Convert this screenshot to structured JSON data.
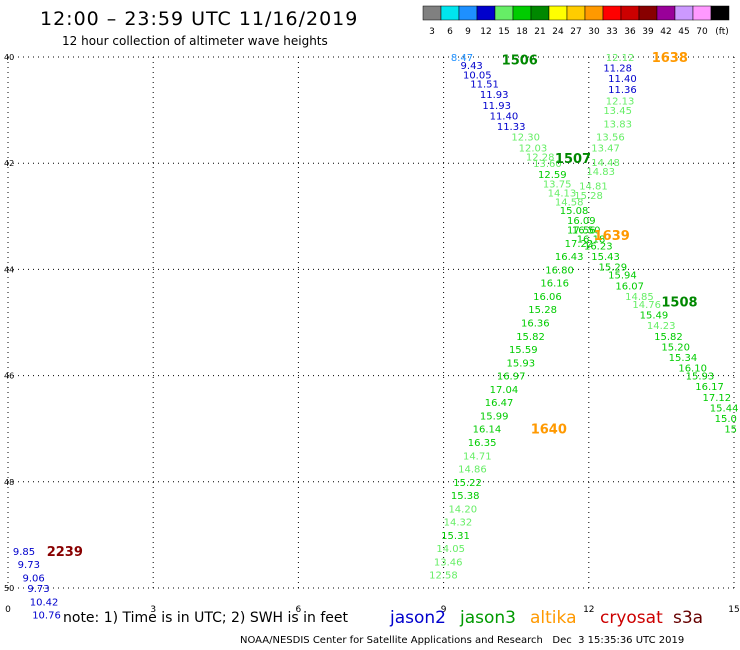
{
  "title": "12:00 – 23:59 UTC 11/16/2019",
  "subtitle": "12 hour collection of altimeter wave heights",
  "footer_note": "note: 1) Time is in UTC; 2) SWH is in feet",
  "credit": "NOAA/NESDIS Center for Satellite Applications and Research   Dec  3 15:35:36 UTC 2019",
  "satellites": [
    {
      "name": "jason2",
      "color": "#0000cc"
    },
    {
      "name": "jason3",
      "color": "#009900"
    },
    {
      "name": "altika",
      "color": "#ff9900"
    },
    {
      "name": "cryosat",
      "color": "#cc0000"
    },
    {
      "name": "s3a",
      "color": "#660000"
    }
  ],
  "color_scale": {
    "labels": [
      "3",
      "6",
      "9",
      "12",
      "15",
      "18",
      "21",
      "24",
      "27",
      "30",
      "33",
      "36",
      "39",
      "42",
      "45",
      "70",
      "(ft)"
    ],
    "colors": [
      "#808080",
      "#00e5ee",
      "#1e90ff",
      "#0000cc",
      "#66ee66",
      "#00cc00",
      "#008800",
      "#ffff00",
      "#ffcc00",
      "#ff9900",
      "#ff0000",
      "#cc0000",
      "#880000",
      "#990099",
      "#cc99ff",
      "#ff99ff",
      "#000000"
    ]
  },
  "chart_data": {
    "type": "scatter",
    "title": "12:00 – 23:59 UTC 11/16/2019",
    "xlabel": "",
    "ylabel": "",
    "x_ticks": [
      "0",
      "3",
      "6",
      "9",
      "12",
      "15"
    ],
    "y_ticks": [
      "40",
      "42",
      "44",
      "46",
      "48",
      "50"
    ],
    "xlim": [
      0,
      15
    ],
    "ylim": [
      40,
      50
    ],
    "grid": true,
    "pass_labels": [
      {
        "text": "1506",
        "x": 10.2,
        "y": 40.05,
        "color": "#008800"
      },
      {
        "text": "1638",
        "x": 13.3,
        "y": 40.0,
        "color": "#ff9900"
      },
      {
        "text": "1507",
        "x": 11.3,
        "y": 41.9,
        "color": "#008800"
      },
      {
        "text": "1639",
        "x": 12.1,
        "y": 43.35,
        "color": "#ff9900"
      },
      {
        "text": "1508",
        "x": 13.5,
        "y": 44.6,
        "color": "#008800"
      },
      {
        "text": "1640",
        "x": 10.8,
        "y": 47.0,
        "color": "#ff9900"
      },
      {
        "text": "2239",
        "x": 0.8,
        "y": 49.3,
        "color": "#880000"
      }
    ],
    "series": [
      {
        "name": "1506",
        "color": "#0000cc",
        "points": [
          {
            "x": 9.15,
            "y": 40.0,
            "v": "8.47",
            "c": "#1e90ff"
          },
          {
            "x": 9.35,
            "y": 40.15,
            "v": "9.43"
          },
          {
            "x": 9.4,
            "y": 40.33,
            "v": "10.05"
          },
          {
            "x": 9.55,
            "y": 40.5,
            "v": "11.51"
          },
          {
            "x": 9.75,
            "y": 40.7,
            "v": "11.93"
          },
          {
            "x": 9.8,
            "y": 40.9,
            "v": "11.93"
          },
          {
            "x": 9.95,
            "y": 41.1,
            "v": "11.40"
          },
          {
            "x": 10.1,
            "y": 41.3,
            "v": "11.33"
          }
        ]
      },
      {
        "name": "1507",
        "color": "#66ee66",
        "points": [
          {
            "x": 10.4,
            "y": 41.5,
            "v": "12.30"
          },
          {
            "x": 10.55,
            "y": 41.7,
            "v": "12.03"
          },
          {
            "x": 10.7,
            "y": 41.87,
            "v": "12.28"
          },
          {
            "x": 10.85,
            "y": 42.0,
            "v": "13.60"
          },
          {
            "x": 10.95,
            "y": 42.2,
            "v": "12.59",
            "c": "#00cc00"
          },
          {
            "x": 11.05,
            "y": 42.38,
            "v": "13.75"
          },
          {
            "x": 11.15,
            "y": 42.55,
            "v": "14.13"
          },
          {
            "x": 11.3,
            "y": 42.72,
            "v": "14.58"
          },
          {
            "x": 11.4,
            "y": 42.88,
            "v": "15.08",
            "c": "#00cc00"
          },
          {
            "x": 11.55,
            "y": 43.07,
            "v": "16.09",
            "c": "#00cc00"
          },
          {
            "x": 11.65,
            "y": 43.25,
            "v": "16.50",
            "c": "#00cc00"
          },
          {
            "x": 11.75,
            "y": 43.42,
            "v": "16.18",
            "c": "#00cc00"
          },
          {
            "x": 11.9,
            "y": 43.55,
            "v": "16.23",
            "c": "#00cc00"
          },
          {
            "x": 12.05,
            "y": 43.75,
            "v": "15.43",
            "c": "#00cc00"
          },
          {
            "x": 12.2,
            "y": 43.95,
            "v": "15.29",
            "c": "#00cc00"
          },
          {
            "x": 12.4,
            "y": 44.1,
            "v": "15.94",
            "c": "#00cc00"
          },
          {
            "x": 12.55,
            "y": 44.3,
            "v": "16.07",
            "c": "#00cc00"
          },
          {
            "x": 12.75,
            "y": 44.5,
            "v": "14.85"
          },
          {
            "x": 12.9,
            "y": 44.65,
            "v": "14.76"
          },
          {
            "x": 13.05,
            "y": 44.85,
            "v": "15.49",
            "c": "#00cc00"
          },
          {
            "x": 13.2,
            "y": 45.05,
            "v": "14.23"
          },
          {
            "x": 13.35,
            "y": 45.25,
            "v": "15.82",
            "c": "#00cc00"
          },
          {
            "x": 13.5,
            "y": 45.45,
            "v": "15.20",
            "c": "#00cc00"
          },
          {
            "x": 13.65,
            "y": 45.65,
            "v": "15.34",
            "c": "#00cc00"
          },
          {
            "x": 13.85,
            "y": 45.85,
            "v": "16.10",
            "c": "#00cc00"
          },
          {
            "x": 14.0,
            "y": 46.0,
            "v": "15.93",
            "c": "#00cc00"
          },
          {
            "x": 14.2,
            "y": 46.2,
            "v": "16.17",
            "c": "#00cc00"
          },
          {
            "x": 14.35,
            "y": 46.4,
            "v": "17.12",
            "c": "#00cc00"
          },
          {
            "x": 14.5,
            "y": 46.6,
            "v": "15.44",
            "c": "#00cc00"
          },
          {
            "x": 14.6,
            "y": 46.8,
            "v": "15.0",
            "c": "#00cc00"
          },
          {
            "x": 14.8,
            "y": 47.0,
            "v": "15",
            "c": "#00cc00"
          }
        ]
      },
      {
        "name": "1638",
        "color": "#66ee66",
        "points": [
          {
            "x": 12.35,
            "y": 40.0,
            "v": "12.12"
          },
          {
            "x": 12.3,
            "y": 40.2,
            "v": "11.28",
            "c": "#0000cc"
          },
          {
            "x": 12.4,
            "y": 40.4,
            "v": "11.40",
            "c": "#0000cc"
          },
          {
            "x": 12.4,
            "y": 40.6,
            "v": "11.36",
            "c": "#0000cc"
          },
          {
            "x": 12.35,
            "y": 40.82,
            "v": "12.13"
          },
          {
            "x": 12.3,
            "y": 41.0,
            "v": "13.45"
          },
          {
            "x": 12.3,
            "y": 41.25,
            "v": "13.83"
          },
          {
            "x": 12.15,
            "y": 41.5,
            "v": "13.56"
          },
          {
            "x": 12.05,
            "y": 41.7,
            "v": "13.47"
          },
          {
            "x": 12.05,
            "y": 41.98,
            "v": "14.48"
          },
          {
            "x": 11.95,
            "y": 42.15,
            "v": "14.83"
          },
          {
            "x": 11.8,
            "y": 42.42,
            "v": "14.81"
          },
          {
            "x": 11.7,
            "y": 42.6,
            "v": "15.28"
          }
        ]
      },
      {
        "name": "1639",
        "color": "#00cc00",
        "points": [
          {
            "x": 11.55,
            "y": 43.25,
            "v": "17.56"
          },
          {
            "x": 11.5,
            "y": 43.5,
            "v": "17.22"
          },
          {
            "x": 11.3,
            "y": 43.75,
            "v": "16.43"
          },
          {
            "x": 11.1,
            "y": 44.0,
            "v": "16.80"
          },
          {
            "x": 11.0,
            "y": 44.25,
            "v": "16.16"
          },
          {
            "x": 10.85,
            "y": 44.5,
            "v": "16.06"
          },
          {
            "x": 10.75,
            "y": 44.75,
            "v": "15.28"
          },
          {
            "x": 10.6,
            "y": 45.0,
            "v": "16.36"
          },
          {
            "x": 10.5,
            "y": 45.25,
            "v": "15.82"
          },
          {
            "x": 10.35,
            "y": 45.5,
            "v": "15.59"
          },
          {
            "x": 10.3,
            "y": 45.75,
            "v": "15.93"
          },
          {
            "x": 10.1,
            "y": 46.0,
            "v": "16.97"
          },
          {
            "x": 9.95,
            "y": 46.25,
            "v": "17.04"
          },
          {
            "x": 9.85,
            "y": 46.5,
            "v": "16.47"
          },
          {
            "x": 9.75,
            "y": 46.75,
            "v": "15.99"
          }
        ]
      },
      {
        "name": "1640",
        "color": "#00cc00",
        "points": [
          {
            "x": 9.6,
            "y": 47.0,
            "v": "16.14"
          },
          {
            "x": 9.5,
            "y": 47.25,
            "v": "16.35"
          },
          {
            "x": 9.4,
            "y": 47.5,
            "v": "14.71",
            "c": "#66ee66"
          },
          {
            "x": 9.3,
            "y": 47.75,
            "v": "14.86",
            "c": "#66ee66"
          },
          {
            "x": 9.2,
            "y": 48.0,
            "v": "15.22"
          },
          {
            "x": 9.15,
            "y": 48.25,
            "v": "15.38"
          },
          {
            "x": 9.1,
            "y": 48.5,
            "v": "14.20",
            "c": "#66ee66"
          },
          {
            "x": 9.0,
            "y": 48.75,
            "v": "14.32",
            "c": "#66ee66"
          },
          {
            "x": 8.95,
            "y": 49.0,
            "v": "15.31"
          },
          {
            "x": 8.85,
            "y": 49.25,
            "v": "14.05",
            "c": "#66ee66"
          },
          {
            "x": 8.8,
            "y": 49.5,
            "v": "13.46",
            "c": "#66ee66"
          },
          {
            "x": 8.7,
            "y": 49.75,
            "v": "12.58",
            "c": "#66ee66"
          }
        ]
      },
      {
        "name": "2239",
        "color": "#0000cc",
        "points": [
          {
            "x": 0.1,
            "y": 49.3,
            "v": "9.85"
          },
          {
            "x": 0.2,
            "y": 49.55,
            "v": "9.73"
          },
          {
            "x": 0.3,
            "y": 49.8,
            "v": "9.06"
          },
          {
            "x": 0.4,
            "y": 50.0,
            "v": "9.73"
          },
          {
            "x": 0.45,
            "y": 50.25,
            "v": "10.42"
          },
          {
            "x": 0.5,
            "y": 50.5,
            "v": "10.76"
          }
        ]
      }
    ]
  }
}
